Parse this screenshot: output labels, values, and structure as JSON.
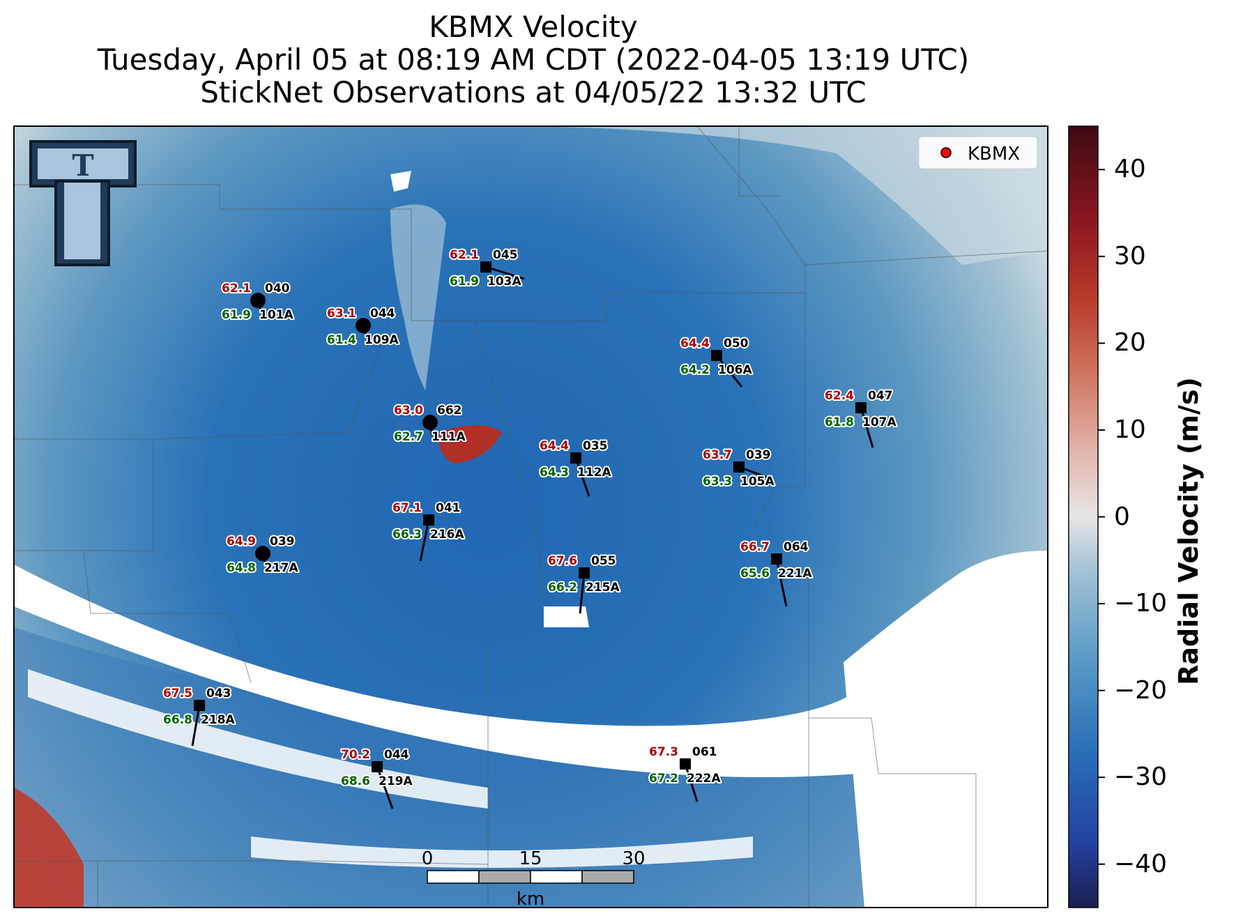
{
  "title": {
    "line1": "KBMX Velocity",
    "line2": "Tuesday, April 05 at 08:19 AM CDT (2022-04-05 13:19 UTC)",
    "line3": "StickNet Observations at 04/05/22 13:32 UTC"
  },
  "legend": {
    "label": "KBMX",
    "marker_color": "#ff0000"
  },
  "colorbar": {
    "label": "Radial Velocity (m/s)",
    "ticks": [
      "40",
      "30",
      "20",
      "10",
      "0",
      "−10",
      "−20",
      "−30",
      "−40"
    ],
    "range": [
      -45,
      45
    ]
  },
  "scalebar": {
    "labels": [
      "0",
      "15",
      "30"
    ],
    "unit": "km"
  },
  "logo": {
    "name": "texas-tech-double-t-logo",
    "text": "T"
  },
  "stations": [
    {
      "id": "101A",
      "temp": "62.1",
      "dew": "61.9",
      "wdir": "040"
    },
    {
      "id": "103A",
      "temp": "62.1",
      "dew": "61.9",
      "wdir": "045"
    },
    {
      "id": "109A",
      "temp": "63.1",
      "dew": "61.4",
      "wdir": "044"
    },
    {
      "id": "106A",
      "temp": "64.4",
      "dew": "64.2",
      "wdir": "050"
    },
    {
      "id": "107A",
      "temp": "62.4",
      "dew": "61.8",
      "wdir": "047"
    },
    {
      "id": "111A",
      "temp": "63.0",
      "dew": "62.7",
      "wdir": "662"
    },
    {
      "id": "112A",
      "temp": "64.4",
      "dew": "64.3",
      "wdir": "035"
    },
    {
      "id": "105A",
      "temp": "63.7",
      "dew": "63.3",
      "wdir": "039"
    },
    {
      "id": "216A",
      "temp": "67.1",
      "dew": "66.3",
      "wdir": "041"
    },
    {
      "id": "217A",
      "temp": "64.9",
      "dew": "64.8",
      "wdir": "039"
    },
    {
      "id": "215A",
      "temp": "67.6",
      "dew": "66.2",
      "wdir": "055"
    },
    {
      "id": "221A",
      "temp": "66.7",
      "dew": "65.6",
      "wdir": "064"
    },
    {
      "id": "218A",
      "temp": "67.5",
      "dew": "66.8",
      "wdir": "043"
    },
    {
      "id": "219A",
      "temp": "70.2",
      "dew": "68.6",
      "wdir": "044"
    },
    {
      "id": "222A",
      "temp": "67.3",
      "dew": "67.2",
      "wdir": "061"
    }
  ]
}
